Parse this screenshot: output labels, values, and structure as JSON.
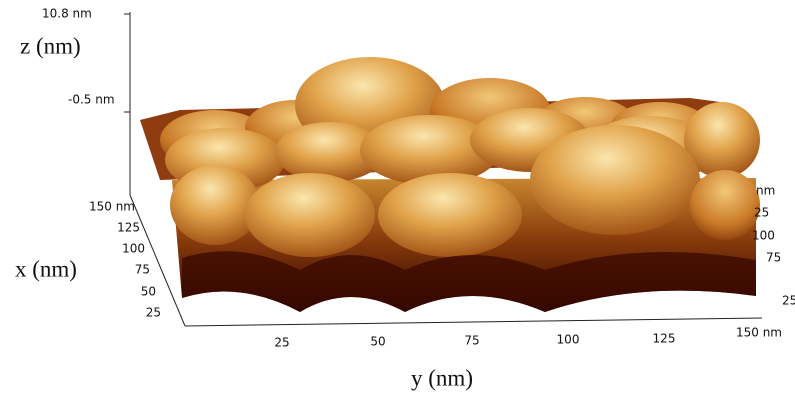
{
  "z_axis": {
    "label": "z (nm)",
    "ticks": [
      "10.8 nm",
      "-0.5 nm"
    ]
  },
  "x_axis": {
    "label": "x (nm)",
    "ticks": [
      "150 nm",
      "125",
      "100",
      "75",
      "50",
      "25"
    ]
  },
  "y_axis": {
    "label": "y (nm)",
    "ticks": [
      "25",
      "50",
      "75",
      "100",
      "125",
      "150 nm"
    ]
  },
  "right_axis": {
    "ticks": [
      "nm",
      "25",
      "100",
      "75",
      "25"
    ]
  }
}
